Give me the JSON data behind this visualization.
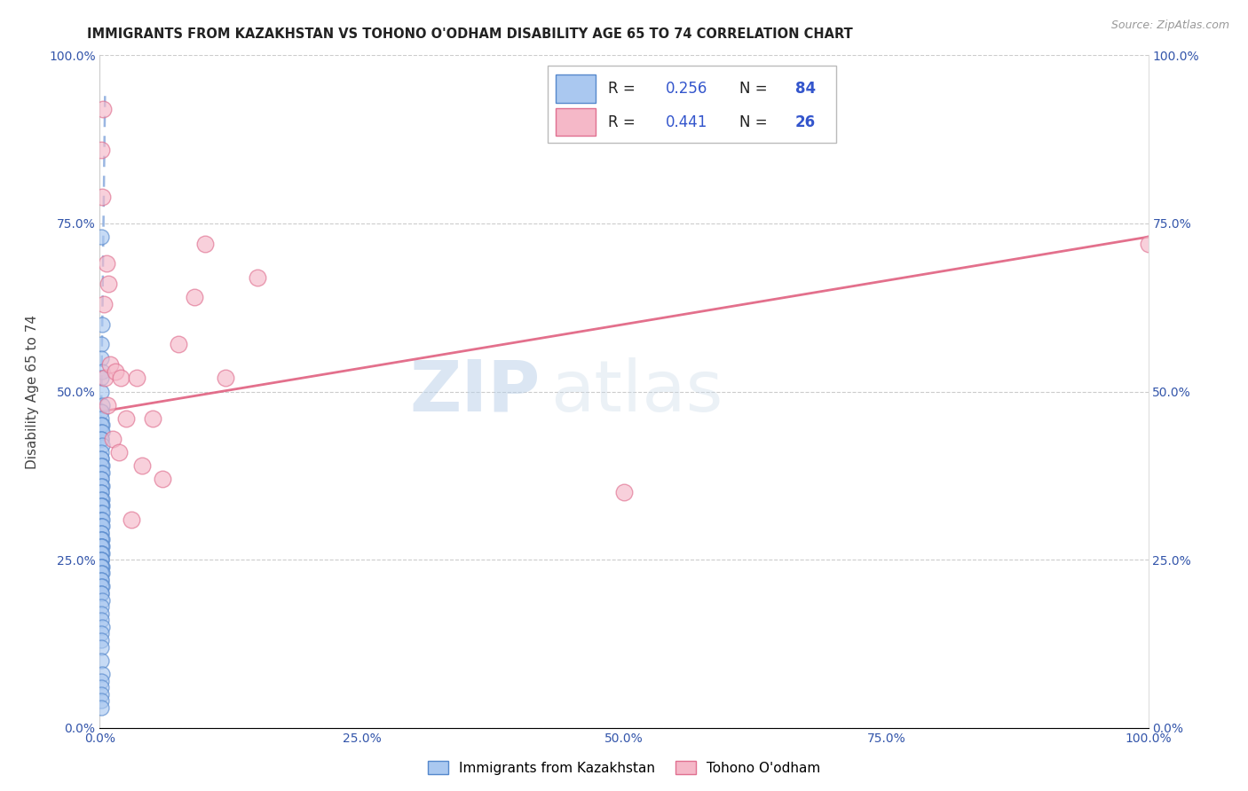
{
  "title": "IMMIGRANTS FROM KAZAKHSTAN VS TOHONO O'ODHAM DISABILITY AGE 65 TO 74 CORRELATION CHART",
  "source": "Source: ZipAtlas.com",
  "ylabel": "Disability Age 65 to 74",
  "xticklabels": [
    "0.0%",
    "25.0%",
    "50.0%",
    "75.0%",
    "100.0%"
  ],
  "yticklabels": [
    "0.0%",
    "25.0%",
    "50.0%",
    "75.0%",
    "100.0%"
  ],
  "xlim": [
    0.0,
    1.0
  ],
  "ylim": [
    0.0,
    1.0
  ],
  "blue_R": "0.256",
  "blue_N": "84",
  "pink_R": "0.441",
  "pink_N": "26",
  "blue_face": "#aac8f0",
  "blue_edge": "#5588cc",
  "pink_face": "#f5b8c8",
  "pink_edge": "#e07090",
  "blue_line": "#88aadd",
  "pink_line": "#e06080",
  "watermark_zip": "ZIP",
  "watermark_atlas": "atlas",
  "legend_label1": "Immigrants from Kazakhstan",
  "legend_label2": "Tohono O'odham",
  "blue_scatter_x": [
    0.001,
    0.002,
    0.001,
    0.001,
    0.002,
    0.001,
    0.001,
    0.002,
    0.001,
    0.001,
    0.002,
    0.001,
    0.001,
    0.002,
    0.001,
    0.001,
    0.002,
    0.001,
    0.001,
    0.001,
    0.002,
    0.001,
    0.001,
    0.002,
    0.001,
    0.001,
    0.002,
    0.001,
    0.001,
    0.001,
    0.002,
    0.001,
    0.002,
    0.001,
    0.001,
    0.001,
    0.002,
    0.001,
    0.001,
    0.002,
    0.001,
    0.001,
    0.002,
    0.001,
    0.001,
    0.001,
    0.002,
    0.001,
    0.001,
    0.001,
    0.002,
    0.001,
    0.001,
    0.002,
    0.001,
    0.001,
    0.001,
    0.001,
    0.002,
    0.001,
    0.001,
    0.002,
    0.001,
    0.001,
    0.001,
    0.002,
    0.001,
    0.001,
    0.001,
    0.002,
    0.001,
    0.001,
    0.001,
    0.002,
    0.001,
    0.001,
    0.001,
    0.001,
    0.002,
    0.001,
    0.001,
    0.001,
    0.001,
    0.001
  ],
  "blue_scatter_y": [
    0.73,
    0.6,
    0.57,
    0.55,
    0.53,
    0.52,
    0.5,
    0.48,
    0.47,
    0.46,
    0.45,
    0.45,
    0.44,
    0.44,
    0.43,
    0.43,
    0.42,
    0.41,
    0.4,
    0.4,
    0.39,
    0.39,
    0.38,
    0.38,
    0.37,
    0.37,
    0.36,
    0.36,
    0.35,
    0.35,
    0.34,
    0.34,
    0.33,
    0.33,
    0.33,
    0.32,
    0.32,
    0.31,
    0.31,
    0.31,
    0.3,
    0.3,
    0.3,
    0.29,
    0.29,
    0.28,
    0.28,
    0.28,
    0.27,
    0.27,
    0.27,
    0.27,
    0.26,
    0.26,
    0.26,
    0.25,
    0.25,
    0.25,
    0.24,
    0.24,
    0.24,
    0.23,
    0.23,
    0.22,
    0.22,
    0.21,
    0.21,
    0.2,
    0.2,
    0.19,
    0.18,
    0.17,
    0.16,
    0.15,
    0.14,
    0.13,
    0.12,
    0.1,
    0.08,
    0.07,
    0.06,
    0.05,
    0.04,
    0.03
  ],
  "pink_scatter_x": [
    0.001,
    0.002,
    0.003,
    0.004,
    0.005,
    0.006,
    0.007,
    0.008,
    0.01,
    0.012,
    0.015,
    0.018,
    0.02,
    0.025,
    0.03,
    0.035,
    0.04,
    0.05,
    0.06,
    0.075,
    0.09,
    0.1,
    0.12,
    0.15,
    0.5,
    1.0
  ],
  "pink_scatter_y": [
    0.86,
    0.79,
    0.92,
    0.63,
    0.52,
    0.69,
    0.48,
    0.66,
    0.54,
    0.43,
    0.53,
    0.41,
    0.52,
    0.46,
    0.31,
    0.52,
    0.39,
    0.46,
    0.37,
    0.57,
    0.64,
    0.72,
    0.52,
    0.67,
    0.35,
    0.72
  ],
  "pink_trendline_x0": 0.0,
  "pink_trendline_y0": 0.47,
  "pink_trendline_x1": 1.0,
  "pink_trendline_y1": 0.73,
  "blue_trendline_x0": 0.0,
  "blue_trendline_y0": 0.3,
  "blue_trendline_x1": 0.005,
  "blue_trendline_y1": 0.95
}
